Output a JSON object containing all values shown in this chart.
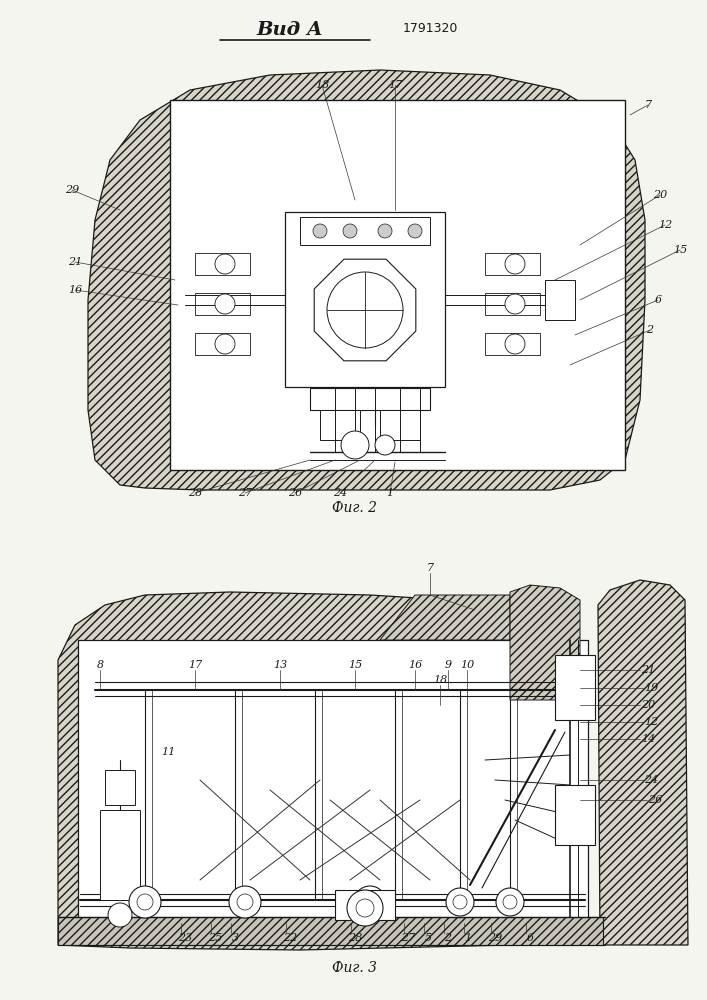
{
  "bg_color": "#f5f5f0",
  "line_color": "#1a1a1a",
  "title": "Вид А",
  "patent": "1791320",
  "fig2_caption": "Фиг. 2",
  "fig3_caption": "Фиг. 3",
  "page_bg": "#f2f0eb"
}
